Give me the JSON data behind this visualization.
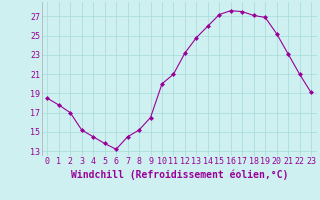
{
  "x": [
    0,
    1,
    2,
    3,
    4,
    5,
    6,
    7,
    8,
    9,
    10,
    11,
    12,
    13,
    14,
    15,
    16,
    17,
    18,
    19,
    20,
    21,
    22,
    23
  ],
  "y": [
    18.5,
    17.8,
    17.0,
    15.2,
    14.5,
    13.8,
    13.2,
    14.5,
    15.2,
    16.5,
    20.0,
    21.0,
    23.2,
    24.8,
    26.0,
    27.2,
    27.6,
    27.5,
    27.1,
    26.9,
    25.2,
    23.1,
    21.0,
    19.1
  ],
  "line_color": "#990099",
  "marker": "D",
  "marker_size": 2.0,
  "bg_color": "#cff0f0",
  "grid_color": "#aadddd",
  "xlabel": "Windchill (Refroidissement éolien,°C)",
  "xlabel_color": "#990099",
  "ylabel_ticks": [
    13,
    15,
    17,
    19,
    21,
    23,
    25,
    27
  ],
  "xtick_labels": [
    "0",
    "1",
    "2",
    "3",
    "4",
    "5",
    "6",
    "7",
    "8",
    "9",
    "10",
    "11",
    "12",
    "13",
    "14",
    "15",
    "16",
    "17",
    "18",
    "19",
    "20",
    "21",
    "22",
    "23"
  ],
  "ylim": [
    12.5,
    28.5
  ],
  "xlim": [
    -0.5,
    23.5
  ],
  "tick_color": "#990099",
  "tick_fontsize": 6,
  "xlabel_fontsize": 7
}
